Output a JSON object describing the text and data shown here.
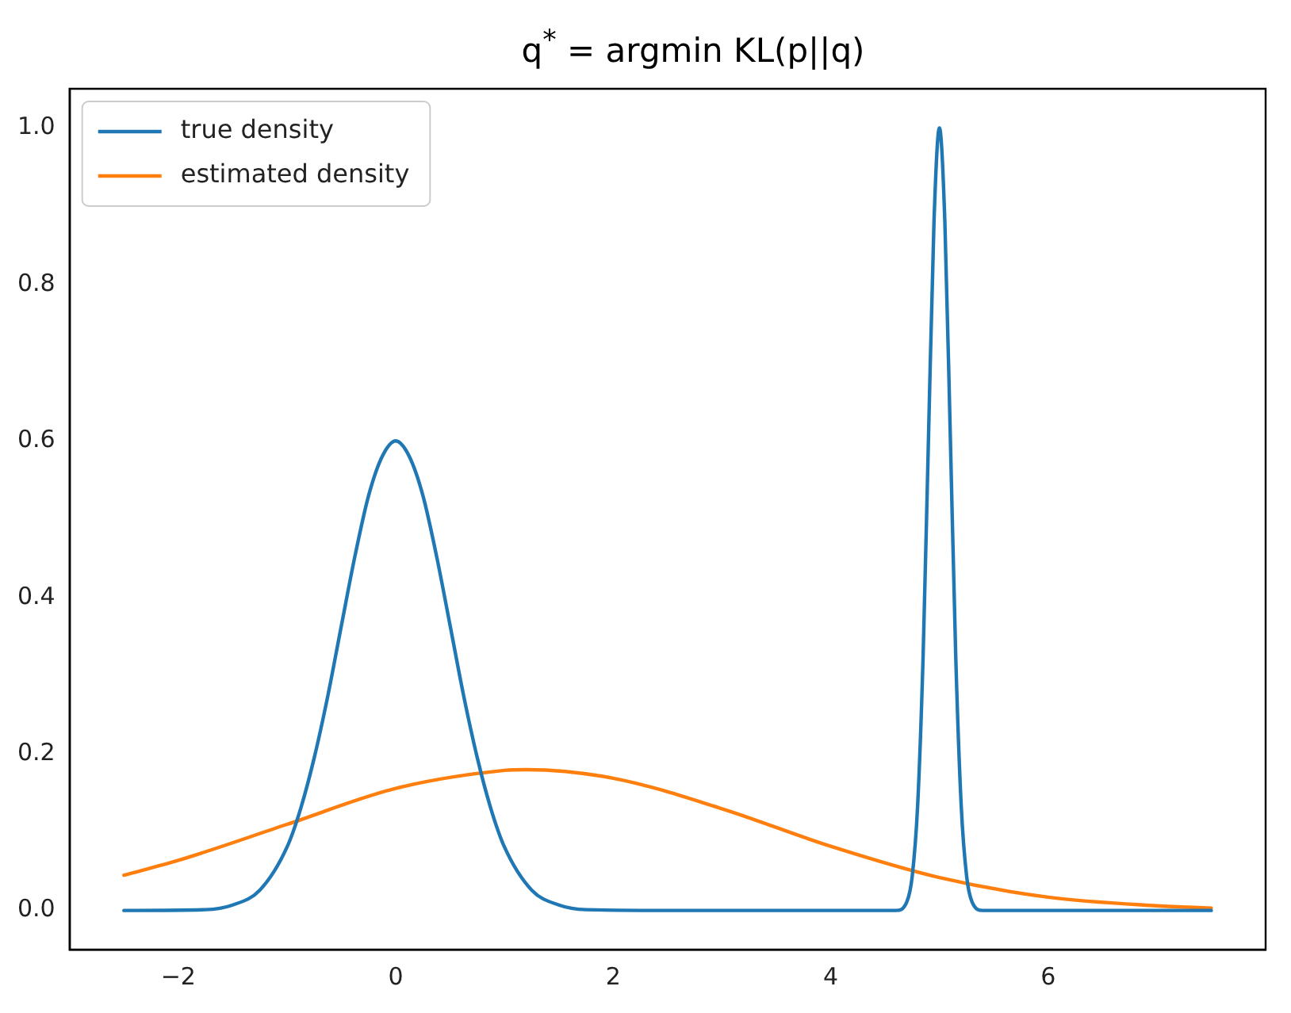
{
  "chart_data": {
    "type": "line",
    "title": "q$^{*}$ = argmin KL(p||q)",
    "xlim": [
      -3,
      8
    ],
    "xticks": [
      -2,
      0,
      2,
      4,
      6
    ],
    "ylim": [
      -0.05,
      1.05
    ],
    "yticks": [
      {
        "value": 0,
        "label": "0.0"
      },
      {
        "value": 0.2,
        "label": "0.2"
      },
      {
        "value": 0.4,
        "label": "0.4"
      },
      {
        "value": 0.6,
        "label": "0.6"
      },
      {
        "value": 0.8,
        "label": "0.8"
      },
      {
        "value": 1,
        "label": "1.0"
      }
    ],
    "grid": false,
    "legend": "top left",
    "marker": "none",
    "line_style": "solid",
    "series": [
      {
        "name": "true density",
        "color": "#1f77b4",
        "x": [
          -2.5,
          -1.75,
          -1.5,
          -1.25,
          -1,
          -0.875,
          -0.75,
          -0.625,
          -0.5,
          -0.375,
          -0.25,
          -0.125,
          0,
          0.125,
          0.25,
          0.375,
          0.5,
          0.625,
          0.75,
          0.875,
          1,
          1.25,
          1.5,
          1.75,
          2.5,
          4.6,
          4.7,
          4.75,
          4.8,
          4.85,
          4.9,
          4.95,
          5,
          5.05,
          5.1,
          5.15,
          5.2,
          5.25,
          5.3,
          5.4,
          7.5
        ],
        "values": [
          0,
          0.001,
          0.007,
          0.026,
          0.081,
          0.13,
          0.195,
          0.274,
          0.364,
          0.453,
          0.53,
          0.58,
          0.6,
          0.58,
          0.53,
          0.453,
          0.364,
          0.274,
          0.195,
          0.13,
          0.081,
          0.026,
          0.007,
          0.001,
          0,
          0,
          0.011,
          0.044,
          0.135,
          0.325,
          0.607,
          0.88,
          1,
          0.88,
          0.607,
          0.325,
          0.135,
          0.044,
          0.011,
          0,
          0
        ]
      },
      {
        "name": "estimated density",
        "color": "#ff7f0e",
        "x": [
          -2.5,
          -2,
          -1,
          0,
          1,
          1.2,
          2,
          3,
          4,
          5,
          6,
          7,
          7.5
        ],
        "values": [
          0.045,
          0.064,
          0.11,
          0.156,
          0.179,
          0.18,
          0.169,
          0.13,
          0.082,
          0.042,
          0.017,
          0.006,
          0.003
        ]
      }
    ]
  }
}
